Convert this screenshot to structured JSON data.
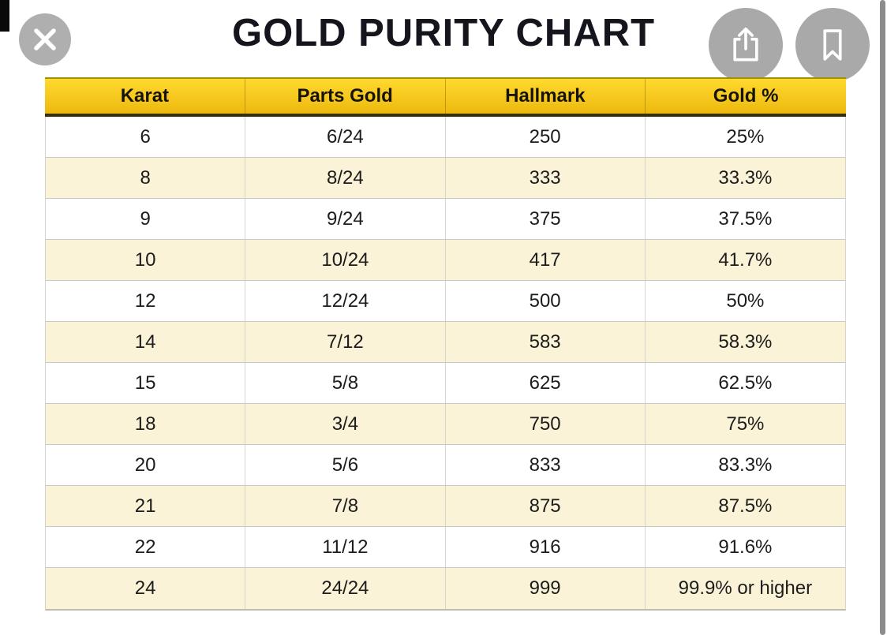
{
  "window": {
    "title": "GOLD PURITY CHART"
  },
  "toolbar": {
    "buttons": [
      {
        "name": "close",
        "icon": "x-icon"
      },
      {
        "name": "share",
        "icon": "share-icon"
      },
      {
        "name": "bookmark",
        "icon": "bookmark-icon"
      }
    ]
  },
  "table": {
    "columns": [
      "Karat",
      "Parts Gold",
      "Hallmark",
      "Gold %"
    ],
    "rows": [
      [
        "6",
        "6/24",
        "250",
        "25%"
      ],
      [
        "8",
        "8/24",
        "333",
        "33.3%"
      ],
      [
        "9",
        "9/24",
        "375",
        "37.5%"
      ],
      [
        "10",
        "10/24",
        "417",
        "41.7%"
      ],
      [
        "12",
        "12/24",
        "500",
        "50%"
      ],
      [
        "14",
        "7/12",
        "583",
        "58.3%"
      ],
      [
        "15",
        "5/8",
        "625",
        "62.5%"
      ],
      [
        "18",
        "3/4",
        "750",
        "75%"
      ],
      [
        "20",
        "5/6",
        "833",
        "83.3%"
      ],
      [
        "21",
        "7/8",
        "875",
        "87.5%"
      ],
      [
        "22",
        "11/12",
        "916",
        "91.6%"
      ],
      [
        "24",
        "24/24",
        "999",
        "99.9% or higher"
      ]
    ]
  },
  "chart_data": {
    "type": "table",
    "title": "GOLD PURITY CHART",
    "columns": [
      "Karat",
      "Parts Gold",
      "Hallmark",
      "Gold %"
    ],
    "rows": [
      [
        "6",
        "6/24",
        "250",
        "25%"
      ],
      [
        "8",
        "8/24",
        "333",
        "33.3%"
      ],
      [
        "9",
        "9/24",
        "375",
        "37.5%"
      ],
      [
        "10",
        "10/24",
        "417",
        "41.7%"
      ],
      [
        "12",
        "12/24",
        "500",
        "50%"
      ],
      [
        "14",
        "7/12",
        "583",
        "58.3%"
      ],
      [
        "15",
        "5/8",
        "625",
        "62.5%"
      ],
      [
        "18",
        "3/4",
        "750",
        "75%"
      ],
      [
        "20",
        "5/6",
        "833",
        "83.3%"
      ],
      [
        "21",
        "7/8",
        "875",
        "87.5%"
      ],
      [
        "22",
        "11/12",
        "916",
        "91.6%"
      ],
      [
        "24",
        "24/24",
        "999",
        "99.9% or higher"
      ]
    ]
  },
  "colors": {
    "header_yellow_top": "#ffd92f",
    "header_yellow_bottom": "#edb90e",
    "header_border_dark": "#353005",
    "row_alt_cream": "#fbf3d7",
    "grid_line": "#c9c9c4",
    "button_gray": "#a9a9a9",
    "scrollbar_gray": "#8c8c8c",
    "title_black": "#15151d"
  }
}
